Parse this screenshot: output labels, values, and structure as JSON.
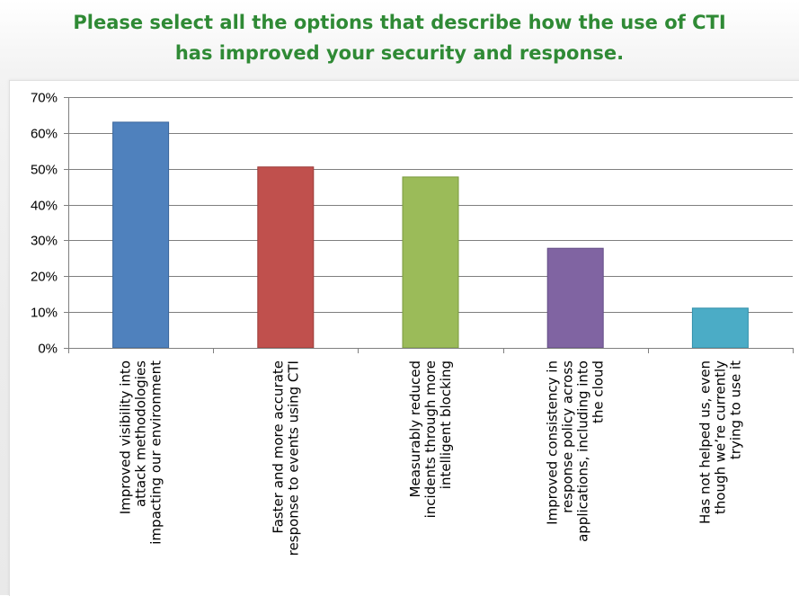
{
  "title": {
    "line1": "Please select all the options that describe how the use of CTI",
    "line2": "has improved your security and response."
  },
  "colors": {
    "title": "#2f8a35",
    "gridline": "#7f7f7f"
  },
  "chart_data": {
    "type": "bar",
    "title": "Please select all the options that describe how the use of CTI has improved your security and response.",
    "xlabel": "",
    "ylabel": "",
    "ylim": [
      0,
      70
    ],
    "yticks": [
      "0%",
      "10%",
      "20%",
      "30%",
      "40%",
      "50%",
      "60%",
      "70%"
    ],
    "grid": true,
    "legend": "none",
    "categories": [
      [
        "Improved visibility into",
        "attack methodologies",
        "impacting our environment"
      ],
      [
        "Faster and more accurate",
        "response to events using CTI"
      ],
      [
        "Measurably reduced",
        "incidents through more",
        "intelligent blocking"
      ],
      [
        "Improved consistency in",
        "response policy across",
        "applications, including into",
        "the cloud"
      ],
      [
        "Has not helped us, even",
        "though we’re currently",
        "trying to use it"
      ]
    ],
    "values": [
      63,
      50.5,
      47.7,
      27.8,
      11.1
    ],
    "bar_colors": [
      "#4f81bd",
      "#c0504d",
      "#9bbb59",
      "#8064a2",
      "#4bacc6"
    ],
    "bar_edge_colors": [
      "#3a659b",
      "#9b3b38",
      "#7a9a3e",
      "#634d85",
      "#3190ab"
    ]
  }
}
